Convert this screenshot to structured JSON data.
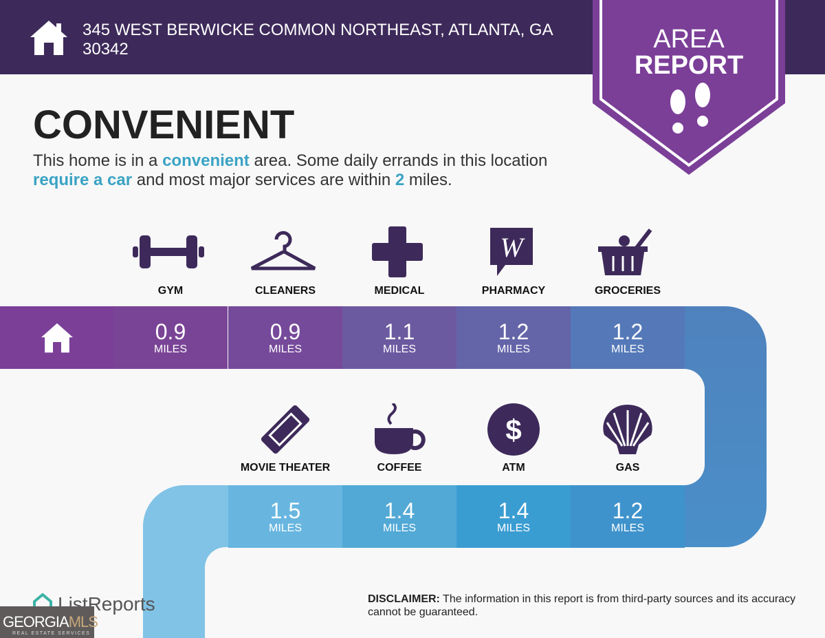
{
  "header": {
    "address": "345 WEST BERWICKE COMMON NORTHEAST, ATLANTA, GA 30342",
    "icon": "home-icon"
  },
  "badge": {
    "line1": "AREA",
    "line2": "REPORT",
    "icon": "footprints-icon",
    "color": "#7b3f98"
  },
  "title": "CONVENIENT",
  "description": {
    "p1": "This home is in a ",
    "h1": "convenient",
    "p2": " area. Some daily errands in this location ",
    "h2": "require a car",
    "p3": " and most major services are within ",
    "h3": "2",
    "p4": " miles."
  },
  "row1": [
    {
      "label": "GYM",
      "value": "0.9",
      "unit": "MILES",
      "icon": "dumbbell-icon"
    },
    {
      "label": "CLEANERS",
      "value": "0.9",
      "unit": "MILES",
      "icon": "hanger-icon"
    },
    {
      "label": "MEDICAL",
      "value": "1.1",
      "unit": "MILES",
      "icon": "medical-cross-icon"
    },
    {
      "label": "PHARMACY",
      "value": "1.2",
      "unit": "MILES",
      "icon": "walgreens-icon"
    },
    {
      "label": "GROCERIES",
      "value": "1.2",
      "unit": "MILES",
      "icon": "grocery-basket-icon"
    }
  ],
  "row2": [
    {
      "label": "MOVIE THEATER",
      "value": "1.5",
      "unit": "MILES",
      "icon": "ticket-icon"
    },
    {
      "label": "COFFEE",
      "value": "1.4",
      "unit": "MILES",
      "icon": "coffee-cup-icon"
    },
    {
      "label": "ATM",
      "value": "1.4",
      "unit": "MILES",
      "icon": "dollar-icon"
    },
    {
      "label": "GAS",
      "value": "1.2",
      "unit": "MILES",
      "icon": "shell-icon"
    }
  ],
  "footer": {
    "brand": "ListReports",
    "mls_logo": "GEORGIAMLS REAL ESTATE SERVICES",
    "disclaimer_label": "DISCLAIMER:",
    "disclaimer": " The information in this report is from third-party sources and its accuracy cannot be guaranteed."
  }
}
